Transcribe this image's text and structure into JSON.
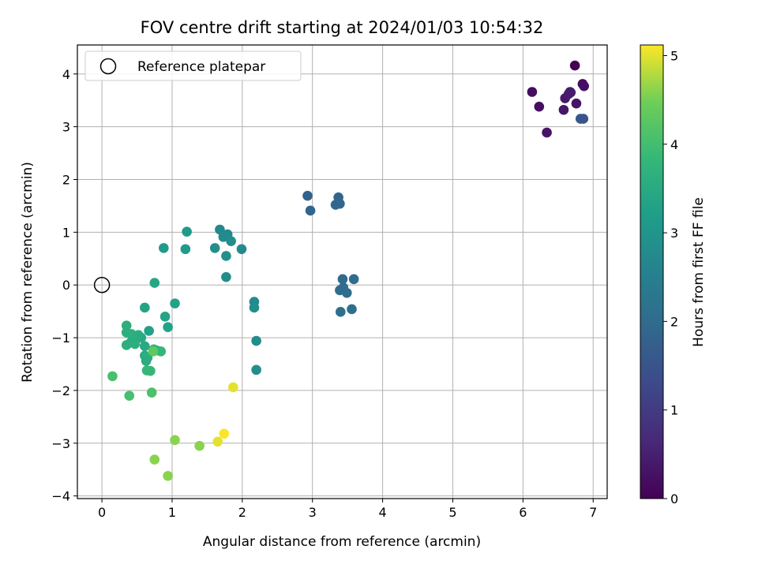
{
  "chart_data": {
    "type": "scatter",
    "title": "FOV centre drift starting at 2024/01/03 10:54:32",
    "xlabel": "Angular distance from reference (arcmin)",
    "ylabel": "Rotation from reference (arcmin)",
    "xlim": [
      -0.35,
      7.2
    ],
    "ylim": [
      -4.05,
      4.55
    ],
    "xticks": [
      "0",
      "1",
      "2",
      "3",
      "4",
      "5",
      "6",
      "7"
    ],
    "yticks": [
      "−4",
      "−3",
      "−2",
      "−1",
      "0",
      "1",
      "2",
      "3",
      "4"
    ],
    "grid": true,
    "legend": {
      "placement": "top-left",
      "entries": [
        "Reference platepar"
      ]
    },
    "reference_point": {
      "x": 0,
      "y": 0
    },
    "colorbar": {
      "label": "Hours from first FF file",
      "colormap": "viridis",
      "range": [
        0,
        5.12
      ],
      "ticks": [
        "0",
        "1",
        "2",
        "3",
        "4",
        "5"
      ]
    },
    "points": [
      {
        "x": 6.74,
        "y": 4.16,
        "h": 0.0
      },
      {
        "x": 6.13,
        "y": 3.66,
        "h": 0.2
      },
      {
        "x": 6.23,
        "y": 3.38,
        "h": 0.25
      },
      {
        "x": 6.34,
        "y": 2.89,
        "h": 0.3
      },
      {
        "x": 6.58,
        "y": 3.32,
        "h": 0.35
      },
      {
        "x": 6.6,
        "y": 3.54,
        "h": 0.4
      },
      {
        "x": 6.65,
        "y": 3.62,
        "h": 0.45
      },
      {
        "x": 6.67,
        "y": 3.66,
        "h": 0.5
      },
      {
        "x": 6.68,
        "y": 3.65,
        "h": 0.45
      },
      {
        "x": 6.76,
        "y": 3.44,
        "h": 0.3
      },
      {
        "x": 6.85,
        "y": 3.81,
        "h": 0.2
      },
      {
        "x": 6.87,
        "y": 3.77,
        "h": 0.25
      },
      {
        "x": 6.82,
        "y": 3.15,
        "h": 1.6
      },
      {
        "x": 6.86,
        "y": 3.15,
        "h": 1.5
      },
      {
        "x": 2.93,
        "y": 1.69,
        "h": 1.8
      },
      {
        "x": 2.97,
        "y": 1.41,
        "h": 1.85
      },
      {
        "x": 3.37,
        "y": 1.66,
        "h": 1.85
      },
      {
        "x": 3.33,
        "y": 1.52,
        "h": 1.9
      },
      {
        "x": 3.39,
        "y": 1.54,
        "h": 1.9
      },
      {
        "x": 3.43,
        "y": 0.11,
        "h": 2.0
      },
      {
        "x": 3.59,
        "y": 0.11,
        "h": 2.05
      },
      {
        "x": 3.39,
        "y": -0.1,
        "h": 2.05
      },
      {
        "x": 3.44,
        "y": -0.05,
        "h": 2.05
      },
      {
        "x": 3.49,
        "y": -0.15,
        "h": 2.05
      },
      {
        "x": 3.4,
        "y": -0.51,
        "h": 2.1
      },
      {
        "x": 3.56,
        "y": -0.46,
        "h": 2.1
      },
      {
        "x": 1.68,
        "y": 1.05,
        "h": 2.7
      },
      {
        "x": 1.73,
        "y": 0.91,
        "h": 2.75
      },
      {
        "x": 1.79,
        "y": 0.96,
        "h": 2.75
      },
      {
        "x": 1.84,
        "y": 0.83,
        "h": 2.8
      },
      {
        "x": 1.61,
        "y": 0.7,
        "h": 2.85
      },
      {
        "x": 1.99,
        "y": 0.68,
        "h": 2.75
      },
      {
        "x": 1.77,
        "y": 0.55,
        "h": 2.85
      },
      {
        "x": 1.77,
        "y": 0.15,
        "h": 2.8
      },
      {
        "x": 2.17,
        "y": -0.32,
        "h": 2.75
      },
      {
        "x": 2.17,
        "y": -0.43,
        "h": 2.8
      },
      {
        "x": 2.2,
        "y": -1.06,
        "h": 2.8
      },
      {
        "x": 2.2,
        "y": -1.61,
        "h": 2.85
      },
      {
        "x": 1.21,
        "y": 1.01,
        "h": 3.1
      },
      {
        "x": 0.88,
        "y": 0.7,
        "h": 3.1
      },
      {
        "x": 1.19,
        "y": 0.68,
        "h": 3.1
      },
      {
        "x": 0.75,
        "y": 0.04,
        "h": 3.4
      },
      {
        "x": 1.04,
        "y": -0.35,
        "h": 3.3
      },
      {
        "x": 0.61,
        "y": -0.43,
        "h": 3.35
      },
      {
        "x": 0.9,
        "y": -0.6,
        "h": 3.35
      },
      {
        "x": 0.94,
        "y": -0.8,
        "h": 3.3
      },
      {
        "x": 0.67,
        "y": -0.87,
        "h": 3.3
      },
      {
        "x": 0.35,
        "y": -0.77,
        "h": 3.6
      },
      {
        "x": 0.35,
        "y": -0.9,
        "h": 3.6
      },
      {
        "x": 0.42,
        "y": -0.93,
        "h": 3.6
      },
      {
        "x": 0.47,
        "y": -0.98,
        "h": 3.65
      },
      {
        "x": 0.52,
        "y": -0.95,
        "h": 3.6
      },
      {
        "x": 0.56,
        "y": -1.0,
        "h": 3.5
      },
      {
        "x": 0.41,
        "y": -1.09,
        "h": 3.55
      },
      {
        "x": 0.47,
        "y": -1.12,
        "h": 3.6
      },
      {
        "x": 0.35,
        "y": -1.14,
        "h": 3.6
      },
      {
        "x": 0.61,
        "y": -1.16,
        "h": 3.45
      },
      {
        "x": 0.61,
        "y": -1.34,
        "h": 3.55
      },
      {
        "x": 0.65,
        "y": -1.38,
        "h": 3.6
      },
      {
        "x": 0.63,
        "y": -1.44,
        "h": 3.55
      },
      {
        "x": 0.64,
        "y": -1.62,
        "h": 3.85
      },
      {
        "x": 0.69,
        "y": -1.63,
        "h": 3.85
      },
      {
        "x": 0.74,
        "y": -1.22,
        "h": 3.85
      },
      {
        "x": 0.78,
        "y": -1.24,
        "h": 3.8
      },
      {
        "x": 0.84,
        "y": -1.26,
        "h": 3.8
      },
      {
        "x": 0.73,
        "y": -1.26,
        "h": 4.3
      },
      {
        "x": 0.15,
        "y": -1.73,
        "h": 4.05
      },
      {
        "x": 0.39,
        "y": -2.1,
        "h": 4.05
      },
      {
        "x": 0.71,
        "y": -2.04,
        "h": 4.1
      },
      {
        "x": 1.87,
        "y": -1.94,
        "h": 5.0
      },
      {
        "x": 1.04,
        "y": -2.94,
        "h": 4.6
      },
      {
        "x": 1.39,
        "y": -3.05,
        "h": 4.6
      },
      {
        "x": 1.65,
        "y": -2.97,
        "h": 5.0
      },
      {
        "x": 1.74,
        "y": -2.82,
        "h": 5.1
      },
      {
        "x": 0.75,
        "y": -3.31,
        "h": 4.6
      },
      {
        "x": 0.94,
        "y": -3.62,
        "h": 4.6
      }
    ]
  }
}
